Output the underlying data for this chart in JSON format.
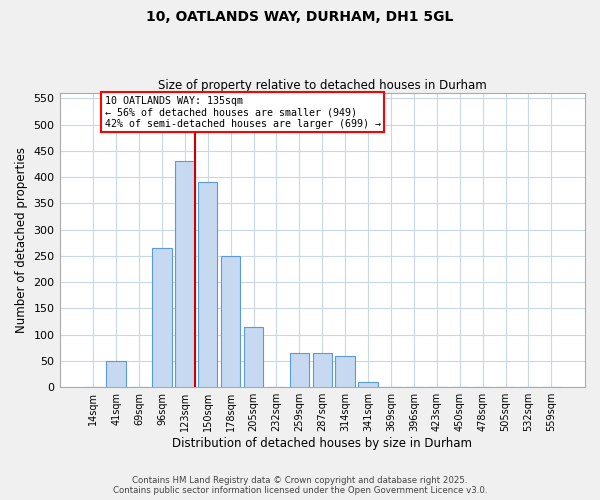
{
  "title_line1": "10, OATLANDS WAY, DURHAM, DH1 5GL",
  "title_line2": "Size of property relative to detached houses in Durham",
  "xlabel": "Distribution of detached houses by size in Durham",
  "ylabel": "Number of detached properties",
  "categories": [
    "14sqm",
    "41sqm",
    "69sqm",
    "96sqm",
    "123sqm",
    "150sqm",
    "178sqm",
    "205sqm",
    "232sqm",
    "259sqm",
    "287sqm",
    "314sqm",
    "341sqm",
    "369sqm",
    "396sqm",
    "423sqm",
    "450sqm",
    "478sqm",
    "505sqm",
    "532sqm",
    "559sqm"
  ],
  "values": [
    0,
    50,
    0,
    265,
    430,
    390,
    250,
    115,
    0,
    65,
    65,
    60,
    10,
    0,
    0,
    0,
    0,
    0,
    0,
    0,
    0
  ],
  "bar_color": "#c6d9f0",
  "bar_edge_color": "#5b9bd5",
  "bar_width": 0.85,
  "ylim": [
    0,
    560
  ],
  "yticks": [
    0,
    50,
    100,
    150,
    200,
    250,
    300,
    350,
    400,
    450,
    500,
    550
  ],
  "annotation_text": "10 OATLANDS WAY: 135sqm\n← 56% of detached houses are smaller (949)\n42% of semi-detached houses are larger (699) →",
  "footer_line1": "Contains HM Land Registry data © Crown copyright and database right 2025.",
  "footer_line2": "Contains public sector information licensed under the Open Government Licence v3.0.",
  "background_color": "#f0f0f0",
  "plot_bg_color": "#ffffff",
  "grid_color": "#c8d8e8"
}
